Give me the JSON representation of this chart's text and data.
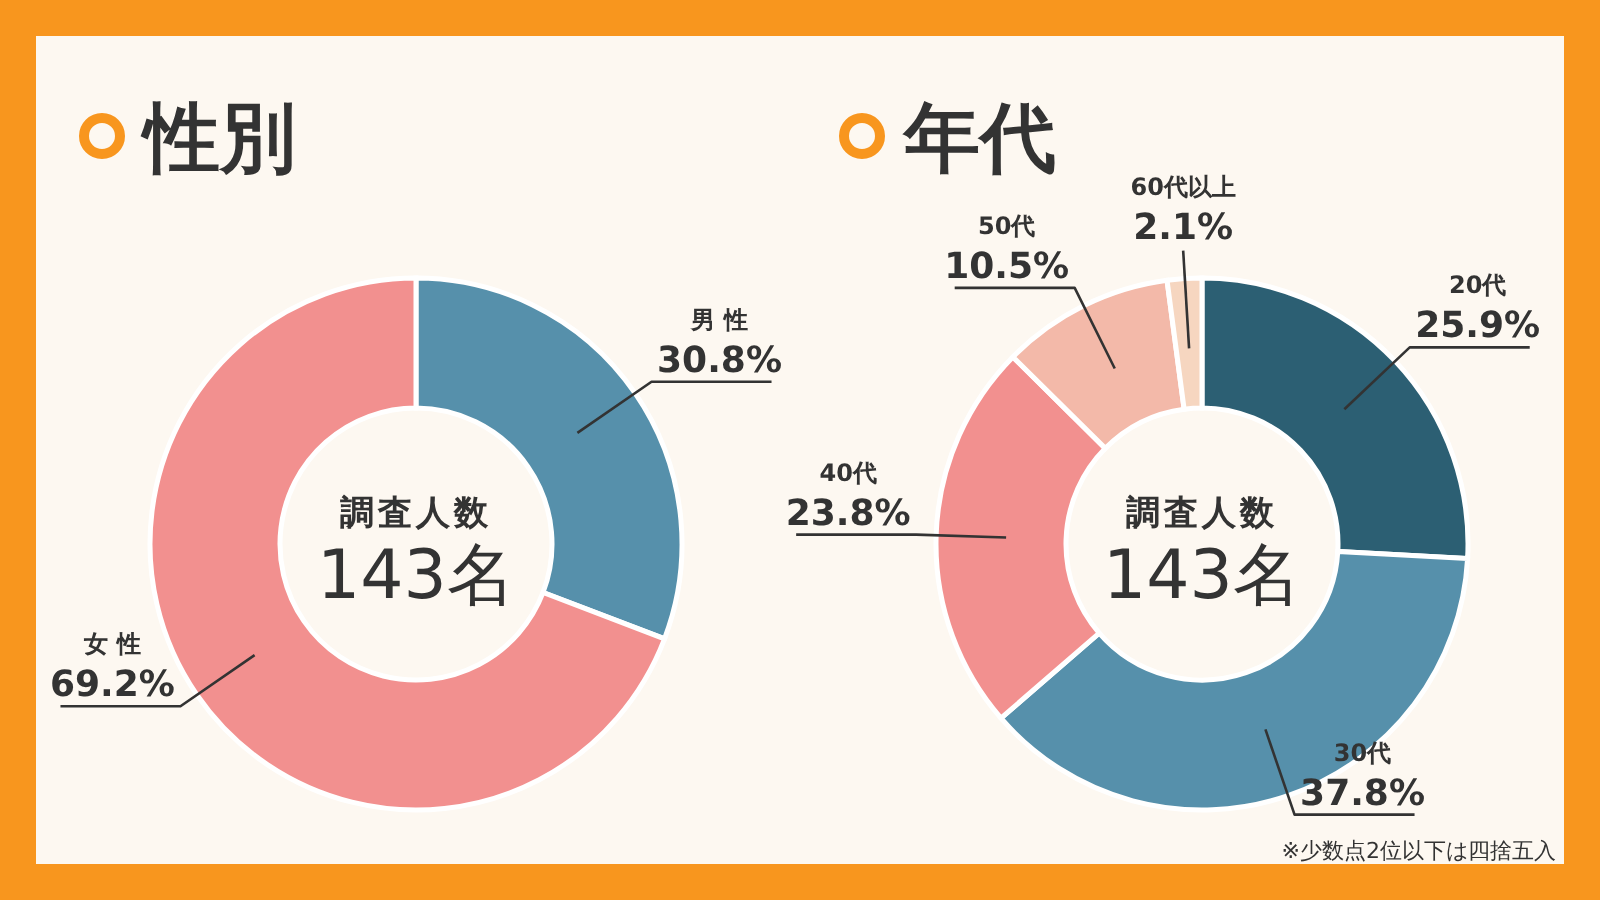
{
  "chart_data": [
    {
      "type": "donut",
      "title": "性別",
      "categories": [
        "男 性",
        "女 性"
      ],
      "values": [
        30.8,
        69.2
      ],
      "value_labels": [
        "30.8%",
        "69.2%"
      ],
      "colors": [
        "#5690ab",
        "#f2908f"
      ],
      "annotations": [
        "調査人数",
        "143名"
      ]
    },
    {
      "type": "donut",
      "title": "年代",
      "categories": [
        "20代",
        "30代",
        "40代",
        "50代",
        "60代以上"
      ],
      "values": [
        25.9,
        37.8,
        23.8,
        10.5,
        2.1
      ],
      "value_labels": [
        "25.9%",
        "37.8%",
        "23.8%",
        "10.5%",
        "2.1%"
      ],
      "colors": [
        "#2c5f73",
        "#5690ab",
        "#f2908f",
        "#f3b9a9",
        "#f6d6c0"
      ],
      "annotations": [
        "調査人数",
        "143名",
        "※少数点2位以下は四捨五入"
      ]
    }
  ]
}
